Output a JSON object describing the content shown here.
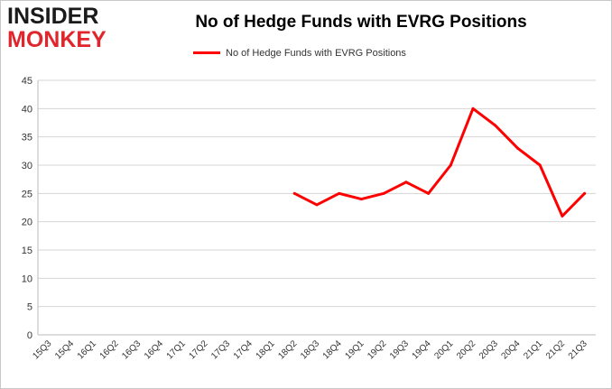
{
  "logo": {
    "line1": "INSIDER",
    "line2": "MONKEY"
  },
  "colors": {
    "series": "#ff0000",
    "grid": "#d4d4d4",
    "logo_accent": "#e0262c"
  },
  "chart_data": {
    "type": "line",
    "title": "No of Hedge Funds with EVRG Positions",
    "legend_position": "top",
    "grid": true,
    "ylim": [
      0,
      45
    ],
    "yticks": [
      0,
      5,
      10,
      15,
      20,
      25,
      30,
      35,
      40,
      45
    ],
    "categories": [
      "15Q3",
      "15Q4",
      "16Q1",
      "16Q2",
      "16Q3",
      "16Q4",
      "17Q1",
      "17Q2",
      "17Q3",
      "17Q4",
      "18Q1",
      "18Q2",
      "18Q3",
      "18Q4",
      "19Q1",
      "19Q2",
      "19Q3",
      "19Q4",
      "20Q1",
      "20Q2",
      "20Q3",
      "20Q4",
      "21Q1",
      "21Q2",
      "21Q3"
    ],
    "series": [
      {
        "name": "No of Hedge Funds with EVRG Positions",
        "values": [
          null,
          null,
          null,
          null,
          null,
          null,
          null,
          null,
          null,
          null,
          null,
          25,
          23,
          25,
          24,
          25,
          27,
          25,
          30,
          40,
          37,
          33,
          30,
          21,
          25
        ]
      }
    ]
  }
}
